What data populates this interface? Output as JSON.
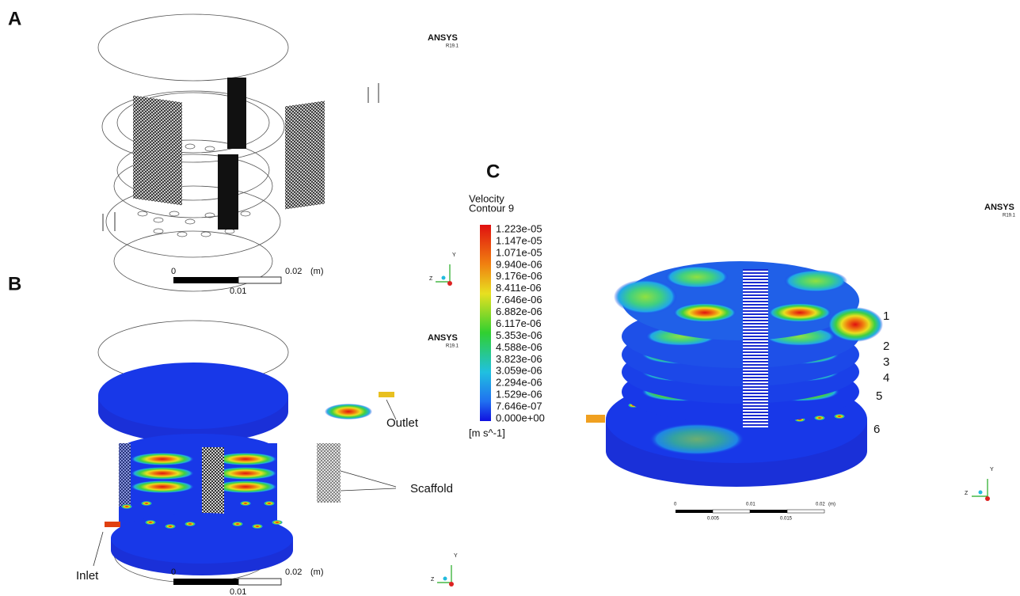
{
  "panels": [
    {
      "label": "A",
      "logo": {
        "name": "ANSYS",
        "version": "R19.1"
      },
      "scale_bar": {
        "start": "0",
        "end": "0.02",
        "unit": "(m)",
        "mid": "0.01"
      },
      "triad": {
        "y": "Y",
        "z": "Z"
      }
    },
    {
      "label": "B",
      "logo": {
        "name": "ANSYS",
        "version": "R19.1"
      },
      "scale_bar": {
        "start": "0",
        "end": "0.02",
        "unit": "(m)",
        "mid": "0.01"
      },
      "triad": {
        "y": "Y",
        "z": "Z"
      },
      "annotations": [
        "Outlet",
        "Scaffold",
        "Inlet"
      ]
    },
    {
      "label": "C",
      "logo": {
        "name": "ANSYS",
        "version": "R19.1"
      },
      "legend": {
        "title": "Velocity",
        "subtitle": "Contour 9",
        "values": [
          "1.223e-05",
          "1.147e-05",
          "1.071e-05",
          "9.940e-06",
          "9.176e-06",
          "8.411e-06",
          "7.646e-06",
          "6.882e-06",
          "6.117e-06",
          "5.353e-06",
          "4.588e-06",
          "3.823e-06",
          "3.059e-06",
          "2.294e-06",
          "1.529e-06",
          "7.646e-07",
          "0.000e+00"
        ],
        "unit": "[m s^-1]"
      },
      "layer_labels": [
        "1",
        "2",
        "3",
        "4",
        "5",
        "6"
      ],
      "scale_bar": {
        "ticks": [
          "0",
          "0.01",
          "0.02"
        ],
        "unit": "(m)",
        "minor": [
          "0.005",
          "0.015"
        ]
      },
      "triad": {
        "y": "Y",
        "z": "Z"
      }
    }
  ]
}
